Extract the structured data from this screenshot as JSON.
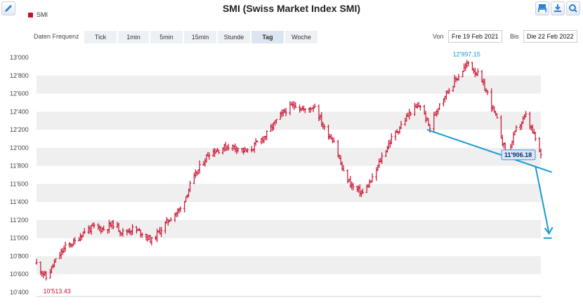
{
  "chart_data": {
    "type": "ohlc",
    "title": "SMI (Swiss Market Index SMI)",
    "legend": [
      "SMI"
    ],
    "series_color": "#c8102e",
    "annotation_color": "#1a9ad6",
    "ylim": [
      10400,
      13000
    ],
    "yticks": [
      10400,
      10600,
      10800,
      11000,
      11200,
      11400,
      11600,
      11800,
      12000,
      12200,
      12400,
      12600,
      12800,
      13000
    ],
    "ytick_labels": [
      "10'400",
      "10'600",
      "10'800",
      "11'000",
      "11'200",
      "11'400",
      "11'600",
      "11'800",
      "12'000",
      "12'200",
      "12'400",
      "12'600",
      "12'800",
      "13'000"
    ],
    "x_start": "2021-02-19",
    "x_end": "2022-02-22",
    "close_path": [
      [
        "2021-02-19",
        10720
      ],
      [
        "2021-02-26",
        10560
      ],
      [
        "2021-03-05",
        10750
      ],
      [
        "2021-03-12",
        10900
      ],
      [
        "2021-03-19",
        10960
      ],
      [
        "2021-03-26",
        11080
      ],
      [
        "2021-04-02",
        11120
      ],
      [
        "2021-04-09",
        11100
      ],
      [
        "2021-04-16",
        11160
      ],
      [
        "2021-04-23",
        11060
      ],
      [
        "2021-04-30",
        11100
      ],
      [
        "2021-05-07",
        11060
      ],
      [
        "2021-05-14",
        10970
      ],
      [
        "2021-05-21",
        11100
      ],
      [
        "2021-05-28",
        11230
      ],
      [
        "2021-06-04",
        11320
      ],
      [
        "2021-06-11",
        11580
      ],
      [
        "2021-06-18",
        11780
      ],
      [
        "2021-06-25",
        11950
      ],
      [
        "2021-07-02",
        11980
      ],
      [
        "2021-07-09",
        12020
      ],
      [
        "2021-07-16",
        12000
      ],
      [
        "2021-07-23",
        11950
      ],
      [
        "2021-07-30",
        12050
      ],
      [
        "2021-08-06",
        12150
      ],
      [
        "2021-08-13",
        12300
      ],
      [
        "2021-08-20",
        12420
      ],
      [
        "2021-08-27",
        12480
      ],
      [
        "2021-09-03",
        12410
      ],
      [
        "2021-09-10",
        12470
      ],
      [
        "2021-09-17",
        12210
      ],
      [
        "2021-09-24",
        12080
      ],
      [
        "2021-10-01",
        11720
      ],
      [
        "2021-10-08",
        11560
      ],
      [
        "2021-10-15",
        11500
      ],
      [
        "2021-10-22",
        11650
      ],
      [
        "2021-10-29",
        11900
      ],
      [
        "2021-11-05",
        12100
      ],
      [
        "2021-11-12",
        12250
      ],
      [
        "2021-11-19",
        12400
      ],
      [
        "2021-11-26",
        12470
      ],
      [
        "2021-12-03",
        12220
      ],
      [
        "2021-12-10",
        12500
      ],
      [
        "2021-12-17",
        12650
      ],
      [
        "2021-12-24",
        12800
      ],
      [
        "2021-12-31",
        12940
      ],
      [
        "2022-01-07",
        12810
      ],
      [
        "2022-01-14",
        12600
      ],
      [
        "2022-01-21",
        12300
      ],
      [
        "2022-01-28",
        11900
      ],
      [
        "2022-02-04",
        12200
      ],
      [
        "2022-02-11",
        12350
      ],
      [
        "2022-02-18",
        12100
      ],
      [
        "2022-02-22",
        11906.18
      ]
    ],
    "high_label": {
      "date": "2021-12-30",
      "value": 12997.15,
      "text": "12'997.15"
    },
    "low_label": {
      "date": "2021-03-01",
      "value": 10513.43,
      "text": "10'513.43"
    },
    "last_label": {
      "date": "2022-02-22",
      "value": 11906.18,
      "text": "11'906.18"
    },
    "trendline": [
      [
        "2021-12-01",
        12200
      ],
      [
        "2022-03-02",
        11730
      ]
    ],
    "arrow": [
      [
        "2022-02-18",
        11800
      ],
      [
        "2022-02-28",
        11050
      ]
    ],
    "target_line": {
      "from": "2022-02-24",
      "to": "2022-03-02",
      "value": 11000
    }
  },
  "controls": {
    "freq_label": "Daten Frequenz",
    "tabs": [
      "Tick",
      "1min",
      "5min",
      "15min",
      "Stunde",
      "Tag",
      "Woche"
    ],
    "active_tab": "Tag",
    "from_label": "Von",
    "from_value": "Fre 19 Feb 2021",
    "to_label": "Bis",
    "to_value": "Die 22 Feb 2022"
  },
  "icons": {
    "edit": "pencil-icon",
    "print": "print-icon",
    "download": "download-icon",
    "zoom": "zoom-icon"
  }
}
